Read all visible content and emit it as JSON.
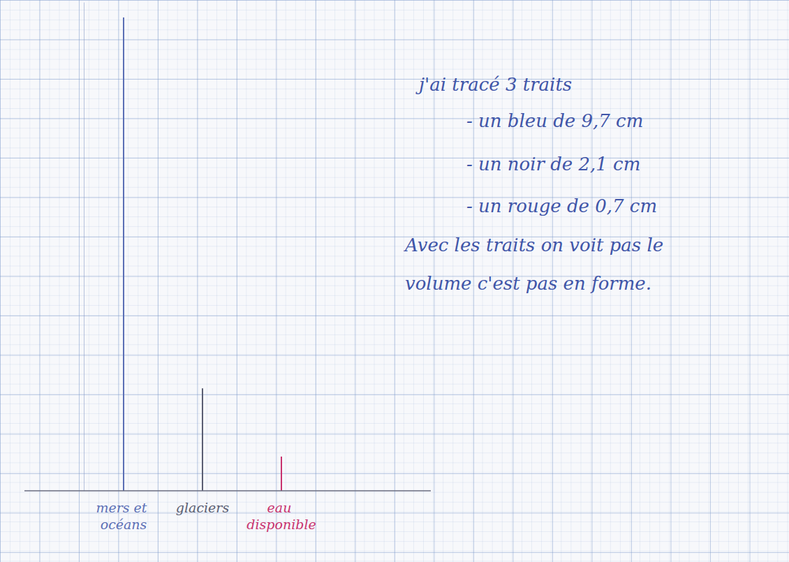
{
  "chart_data": {
    "type": "bar",
    "categories": [
      "mers et océans",
      "glaciers",
      "eau disponible"
    ],
    "values": [
      9.7,
      2.1,
      0.7
    ],
    "colors": [
      "#5b6fb5",
      "#5a5e72",
      "#c8326e"
    ],
    "ylim": [
      0,
      10
    ],
    "tick_labels": "x",
    "annotations": [
      "j'ai tracé 3 traits",
      "- un bleu de 9,7 cm",
      "- un noir de 2,1 cm",
      "- un rouge de 0,7 cm",
      "Avec les traits on voit pas le",
      "volume c'est pas en forme."
    ]
  }
}
